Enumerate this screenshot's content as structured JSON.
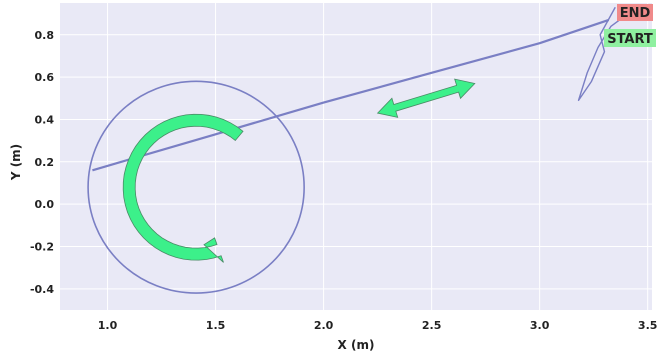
{
  "chart_data": {
    "type": "line",
    "xlabel": "X (m)",
    "ylabel": "Y (m)",
    "xlim": [
      0.78,
      3.52
    ],
    "ylim": [
      -0.5,
      0.95
    ],
    "xticks": [
      "1.0",
      "1.5",
      "2.0",
      "2.5",
      "3.0",
      "3.5"
    ],
    "yticks": [
      "0.8",
      "0.6",
      "0.4",
      "0.2",
      "0.0",
      "-0.2",
      "-0.4"
    ],
    "grid": true,
    "series": [
      {
        "color": "#7a7fc4",
        "shape": "circle",
        "center": [
          1.41,
          0.08
        ],
        "radius": 0.5
      },
      {
        "color": "#7a7fc4",
        "x": [
          0.93,
          1.5,
          2.0,
          2.5,
          3.0,
          3.32
        ],
        "y": [
          0.16,
          0.33,
          0.48,
          0.62,
          0.76,
          0.87
        ]
      },
      {
        "color": "#7a7fc4",
        "x": [
          3.37,
          3.33,
          3.27,
          3.22,
          3.18,
          3.24,
          3.3,
          3.28,
          3.35
        ],
        "y": [
          0.87,
          0.84,
          0.74,
          0.62,
          0.49,
          0.58,
          0.72,
          0.8,
          0.93
        ]
      }
    ],
    "annotations": [
      {
        "text": "END",
        "color": "#f08a8a"
      },
      {
        "text": "START",
        "color": "#8ff0a0"
      }
    ],
    "arrows": [
      {
        "color": "#3cf08a",
        "kind": "double-headed",
        "from": [
          2.25,
          0.43
        ],
        "to": [
          2.7,
          0.57
        ]
      },
      {
        "color": "#3cf08a",
        "kind": "curved",
        "center": [
          1.41,
          0.08
        ],
        "radius": 0.31
      }
    ]
  }
}
